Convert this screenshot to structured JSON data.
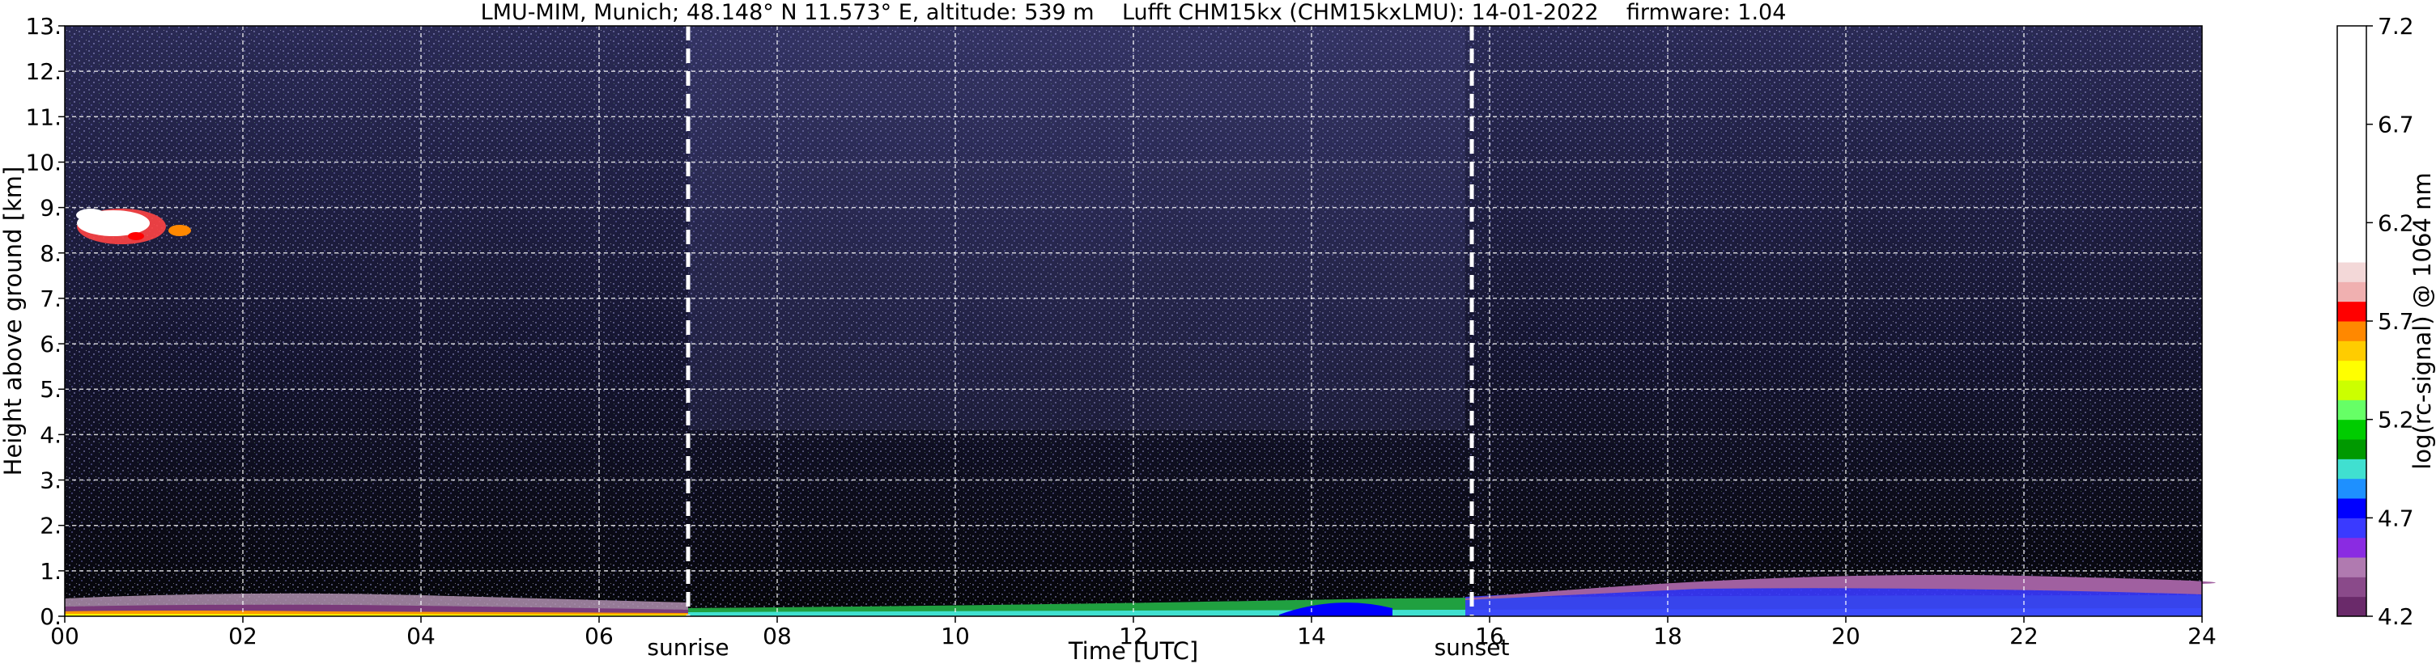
{
  "chart_data": {
    "type": "heatmap",
    "title": "LMU-MIM, Munich; 48.148° N 11.573° E, altitude: 539 m    Lufft CHM15kx (CHM15kxLMU): 14-01-2022    firmware: 1.04",
    "xlabel": "Time [UTC]",
    "ylabel": "Height above ground [km]",
    "xlim": [
      0,
      24
    ],
    "ylim": [
      0,
      13
    ],
    "x_ticks": [
      {
        "value": 0,
        "label": "00"
      },
      {
        "value": 2,
        "label": "02"
      },
      {
        "value": 4,
        "label": "04"
      },
      {
        "value": 6,
        "label": "06"
      },
      {
        "value": 8,
        "label": "08"
      },
      {
        "value": 10,
        "label": "10"
      },
      {
        "value": 12,
        "label": "12"
      },
      {
        "value": 14,
        "label": "14"
      },
      {
        "value": 16,
        "label": "16"
      },
      {
        "value": 18,
        "label": "18"
      },
      {
        "value": 20,
        "label": "20"
      },
      {
        "value": 22,
        "label": "22"
      },
      {
        "value": 24,
        "label": "24"
      }
    ],
    "y_ticks": [
      {
        "value": 0,
        "label": "0."
      },
      {
        "value": 1,
        "label": "1."
      },
      {
        "value": 2,
        "label": "2."
      },
      {
        "value": 3,
        "label": "3."
      },
      {
        "value": 4,
        "label": "4."
      },
      {
        "value": 5,
        "label": "5."
      },
      {
        "value": 6,
        "label": "6."
      },
      {
        "value": 7,
        "label": "7."
      },
      {
        "value": 8,
        "label": "8."
      },
      {
        "value": 9,
        "label": "9."
      },
      {
        "value": 10,
        "label": "10."
      },
      {
        "value": 11,
        "label": "11."
      },
      {
        "value": 12,
        "label": "12."
      },
      {
        "value": 13,
        "label": "13."
      }
    ],
    "grid": true,
    "markers": [
      {
        "label": "sunrise",
        "x": 7.0
      },
      {
        "label": "sunset",
        "x": 15.8
      }
    ],
    "colorbar": {
      "label": "log(rc-signal) @ 1064 nm",
      "range": [
        4.2,
        7.2
      ],
      "ticks": [
        {
          "value": 4.2,
          "label": "4.2"
        },
        {
          "value": 4.7,
          "label": "4.7"
        },
        {
          "value": 5.2,
          "label": "5.2"
        },
        {
          "value": 5.7,
          "label": "5.7"
        },
        {
          "value": 6.2,
          "label": "6.2"
        },
        {
          "value": 6.7,
          "label": "6.7"
        },
        {
          "value": 7.2,
          "label": "7.2"
        }
      ],
      "stops": [
        {
          "from": 4.2,
          "to": 4.3,
          "color": "#6a2a6a"
        },
        {
          "from": 4.3,
          "to": 4.4,
          "color": "#8a4a8a"
        },
        {
          "from": 4.4,
          "to": 4.5,
          "color": "#b07ab0"
        },
        {
          "from": 4.5,
          "to": 4.6,
          "color": "#8a2be2"
        },
        {
          "from": 4.6,
          "to": 4.7,
          "color": "#3a3aff"
        },
        {
          "from": 4.7,
          "to": 4.8,
          "color": "#0000ff"
        },
        {
          "from": 4.8,
          "to": 4.9,
          "color": "#1e90ff"
        },
        {
          "from": 4.9,
          "to": 5.0,
          "color": "#40e0d0"
        },
        {
          "from": 5.0,
          "to": 5.1,
          "color": "#009900"
        },
        {
          "from": 5.1,
          "to": 5.2,
          "color": "#00cc00"
        },
        {
          "from": 5.2,
          "to": 5.3,
          "color": "#66ff66"
        },
        {
          "from": 5.3,
          "to": 5.4,
          "color": "#ccff00"
        },
        {
          "from": 5.4,
          "to": 5.5,
          "color": "#ffff00"
        },
        {
          "from": 5.5,
          "to": 5.6,
          "color": "#ffcc00"
        },
        {
          "from": 5.6,
          "to": 5.7,
          "color": "#ff8800"
        },
        {
          "from": 5.7,
          "to": 5.8,
          "color": "#ff0000"
        },
        {
          "from": 5.8,
          "to": 5.9,
          "color": "#f0b0b0"
        },
        {
          "from": 5.9,
          "to": 6.0,
          "color": "#f3d8d8"
        },
        {
          "from": 6.0,
          "to": 7.2,
          "color": "#ffffff"
        }
      ]
    },
    "background_color": "#1a1a3a"
  }
}
